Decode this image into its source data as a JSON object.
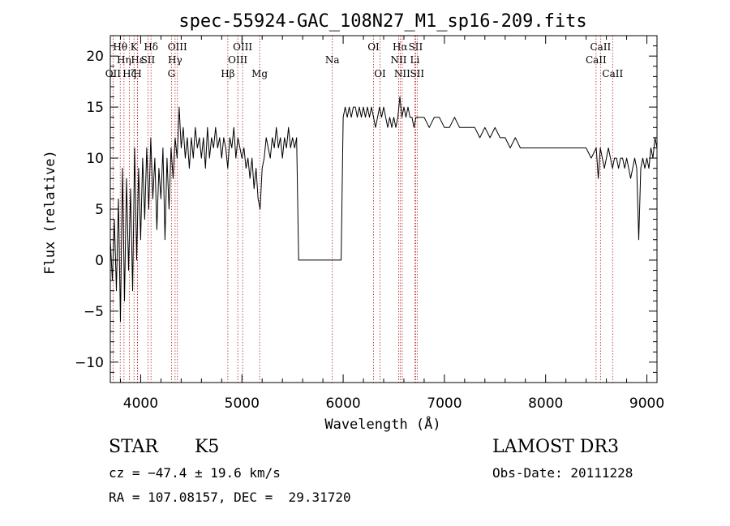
{
  "colors": {
    "axes": "#000000",
    "spectrum": "#000000",
    "line_marker": "#b22222",
    "background": "#ffffff"
  },
  "chart_data": {
    "type": "line",
    "title": "spec-55924-GAC_108N27_M1_sp16-209.fits",
    "xlabel": "Wavelength (Å)",
    "ylabel": "Flux (relative)",
    "xlim": [
      3700,
      9100
    ],
    "ylim": [
      -12,
      22
    ],
    "xticks": [
      4000,
      5000,
      6000,
      7000,
      8000,
      9000
    ],
    "yticks": [
      -10,
      -5,
      0,
      5,
      10,
      15,
      20
    ],
    "grid": false,
    "gap": [
      5560,
      5980
    ],
    "series": [
      {
        "points": [
          [
            3700,
            2
          ],
          [
            3720,
            -2
          ],
          [
            3740,
            4
          ],
          [
            3760,
            -3
          ],
          [
            3780,
            6
          ],
          [
            3800,
            -6
          ],
          [
            3820,
            9
          ],
          [
            3840,
            -4
          ],
          [
            3860,
            8
          ],
          [
            3880,
            -1
          ],
          [
            3900,
            7
          ],
          [
            3920,
            -3
          ],
          [
            3940,
            11
          ],
          [
            3960,
            0
          ],
          [
            3980,
            9
          ],
          [
            4000,
            2
          ],
          [
            4020,
            10
          ],
          [
            4040,
            4
          ],
          [
            4060,
            11
          ],
          [
            4080,
            5
          ],
          [
            4100,
            12
          ],
          [
            4120,
            6
          ],
          [
            4140,
            10
          ],
          [
            4160,
            3
          ],
          [
            4180,
            9
          ],
          [
            4200,
            6
          ],
          [
            4220,
            11
          ],
          [
            4240,
            2
          ],
          [
            4260,
            10
          ],
          [
            4280,
            5
          ],
          [
            4300,
            11
          ],
          [
            4320,
            8
          ],
          [
            4340,
            12
          ],
          [
            4360,
            10
          ],
          [
            4380,
            15
          ],
          [
            4400,
            11
          ],
          [
            4420,
            13
          ],
          [
            4440,
            10
          ],
          [
            4460,
            12
          ],
          [
            4480,
            9
          ],
          [
            4500,
            12
          ],
          [
            4520,
            10
          ],
          [
            4540,
            13
          ],
          [
            4560,
            11
          ],
          [
            4580,
            12
          ],
          [
            4600,
            10
          ],
          [
            4620,
            12
          ],
          [
            4640,
            9
          ],
          [
            4660,
            13
          ],
          [
            4680,
            10
          ],
          [
            4700,
            12
          ],
          [
            4720,
            11
          ],
          [
            4740,
            13
          ],
          [
            4760,
            11
          ],
          [
            4780,
            12
          ],
          [
            4800,
            10
          ],
          [
            4820,
            12
          ],
          [
            4840,
            11
          ],
          [
            4860,
            9
          ],
          [
            4880,
            12
          ],
          [
            4900,
            11
          ],
          [
            4920,
            13
          ],
          [
            4940,
            10
          ],
          [
            4960,
            12
          ],
          [
            4980,
            11
          ],
          [
            5000,
            10
          ],
          [
            5020,
            11
          ],
          [
            5040,
            9
          ],
          [
            5060,
            10
          ],
          [
            5080,
            8
          ],
          [
            5100,
            10
          ],
          [
            5120,
            7
          ],
          [
            5140,
            9
          ],
          [
            5160,
            6
          ],
          [
            5180,
            5
          ],
          [
            5200,
            9
          ],
          [
            5220,
            10
          ],
          [
            5240,
            12
          ],
          [
            5260,
            11
          ],
          [
            5280,
            10
          ],
          [
            5300,
            12
          ],
          [
            5320,
            11
          ],
          [
            5340,
            13
          ],
          [
            5360,
            11
          ],
          [
            5380,
            12
          ],
          [
            5400,
            10
          ],
          [
            5420,
            12
          ],
          [
            5440,
            11
          ],
          [
            5460,
            13
          ],
          [
            5480,
            11
          ],
          [
            5500,
            12
          ],
          [
            5520,
            11
          ],
          [
            5540,
            12
          ],
          [
            5560,
            0
          ],
          [
            5980,
            0
          ],
          [
            6000,
            14
          ],
          [
            6020,
            15
          ],
          [
            6040,
            14
          ],
          [
            6060,
            15
          ],
          [
            6080,
            14
          ],
          [
            6100,
            15
          ],
          [
            6120,
            15
          ],
          [
            6140,
            14
          ],
          [
            6160,
            15
          ],
          [
            6180,
            14
          ],
          [
            6200,
            15
          ],
          [
            6220,
            14
          ],
          [
            6240,
            15
          ],
          [
            6260,
            14
          ],
          [
            6280,
            15
          ],
          [
            6300,
            14
          ],
          [
            6320,
            13
          ],
          [
            6340,
            14
          ],
          [
            6360,
            15
          ],
          [
            6380,
            14
          ],
          [
            6400,
            15
          ],
          [
            6420,
            14
          ],
          [
            6440,
            13
          ],
          [
            6460,
            14
          ],
          [
            6480,
            13
          ],
          [
            6500,
            14
          ],
          [
            6520,
            13
          ],
          [
            6540,
            14
          ],
          [
            6560,
            16
          ],
          [
            6580,
            14
          ],
          [
            6600,
            15
          ],
          [
            6620,
            14
          ],
          [
            6640,
            15
          ],
          [
            6660,
            14
          ],
          [
            6680,
            14
          ],
          [
            6700,
            13
          ],
          [
            6720,
            14
          ],
          [
            6740,
            14
          ],
          [
            6760,
            14
          ],
          [
            6800,
            14
          ],
          [
            6850,
            13
          ],
          [
            6900,
            14
          ],
          [
            6950,
            14
          ],
          [
            7000,
            13
          ],
          [
            7050,
            13
          ],
          [
            7100,
            14
          ],
          [
            7150,
            13
          ],
          [
            7200,
            13
          ],
          [
            7250,
            13
          ],
          [
            7300,
            13
          ],
          [
            7350,
            12
          ],
          [
            7400,
            13
          ],
          [
            7450,
            12
          ],
          [
            7500,
            13
          ],
          [
            7550,
            12
          ],
          [
            7600,
            12
          ],
          [
            7650,
            11
          ],
          [
            7700,
            12
          ],
          [
            7750,
            11
          ],
          [
            7800,
            11
          ],
          [
            7850,
            11
          ],
          [
            7900,
            11
          ],
          [
            7950,
            11
          ],
          [
            8000,
            11
          ],
          [
            8050,
            11
          ],
          [
            8100,
            11
          ],
          [
            8150,
            11
          ],
          [
            8200,
            11
          ],
          [
            8250,
            11
          ],
          [
            8300,
            11
          ],
          [
            8350,
            11
          ],
          [
            8400,
            11
          ],
          [
            8450,
            10
          ],
          [
            8500,
            11
          ],
          [
            8520,
            8
          ],
          [
            8540,
            11
          ],
          [
            8560,
            10
          ],
          [
            8580,
            9
          ],
          [
            8600,
            10
          ],
          [
            8620,
            11
          ],
          [
            8640,
            10
          ],
          [
            8660,
            9
          ],
          [
            8680,
            10
          ],
          [
            8700,
            10
          ],
          [
            8720,
            9
          ],
          [
            8740,
            10
          ],
          [
            8760,
            10
          ],
          [
            8780,
            9
          ],
          [
            8800,
            10
          ],
          [
            8820,
            9
          ],
          [
            8840,
            8
          ],
          [
            8860,
            9
          ],
          [
            8880,
            10
          ],
          [
            8900,
            9
          ],
          [
            8920,
            2
          ],
          [
            8940,
            9
          ],
          [
            8960,
            10
          ],
          [
            8980,
            9
          ],
          [
            9000,
            10
          ],
          [
            9020,
            9
          ],
          [
            9040,
            11
          ],
          [
            9060,
            10
          ],
          [
            9080,
            12
          ],
          [
            9100,
            11
          ]
        ]
      }
    ],
    "line_markers": [
      {
        "label": "Hθ",
        "x": 3798,
        "row": 0
      },
      {
        "label": "OII",
        "x": 3727,
        "row": 2
      },
      {
        "label": "K",
        "x": 3934,
        "row": 0
      },
      {
        "label": "Hη",
        "x": 3835,
        "row": 1
      },
      {
        "label": "Hε",
        "x": 3970,
        "row": 1
      },
      {
        "label": "SII",
        "x": 4072,
        "row": 1
      },
      {
        "label": "H",
        "x": 3968,
        "row": 2
      },
      {
        "label": "Hζ",
        "x": 3889,
        "row": 2
      },
      {
        "label": "Hδ",
        "x": 4102,
        "row": 0
      },
      {
        "label": "OIII",
        "x": 4363,
        "row": 0
      },
      {
        "label": "Hγ",
        "x": 4340,
        "row": 1
      },
      {
        "label": "G",
        "x": 4304,
        "row": 2
      },
      {
        "label": "OIII",
        "x": 5007,
        "row": 0
      },
      {
        "label": "OIII",
        "x": 4959,
        "row": 1
      },
      {
        "label": "Hβ",
        "x": 4861,
        "row": 2
      },
      {
        "label": "Mg",
        "x": 5175,
        "row": 2
      },
      {
        "label": "Na",
        "x": 5893,
        "row": 1
      },
      {
        "label": "OI",
        "x": 6300,
        "row": 0
      },
      {
        "label": "OI",
        "x": 6364,
        "row": 2
      },
      {
        "label": "Hα",
        "x": 6563,
        "row": 0
      },
      {
        "label": "SII",
        "x": 6716,
        "row": 0
      },
      {
        "label": "NII",
        "x": 6548,
        "row": 1
      },
      {
        "label": "Li",
        "x": 6708,
        "row": 1
      },
      {
        "label": "NII",
        "x": 6583,
        "row": 2
      },
      {
        "label": "SII",
        "x": 6731,
        "row": 2
      },
      {
        "label": "CaII",
        "x": 8542,
        "row": 0
      },
      {
        "label": "CaII",
        "x": 8498,
        "row": 1
      },
      {
        "label": "CaII",
        "x": 8662,
        "row": 2
      }
    ]
  },
  "info": {
    "class_type": "STAR",
    "subclass": "K5",
    "survey": "LAMOST DR3",
    "cz": "cz = −47.4 ± 19.6 km/s",
    "obs_date": "Obs-Date: 20111228",
    "coords": "RA = 107.08157, DEC =  29.31720"
  }
}
